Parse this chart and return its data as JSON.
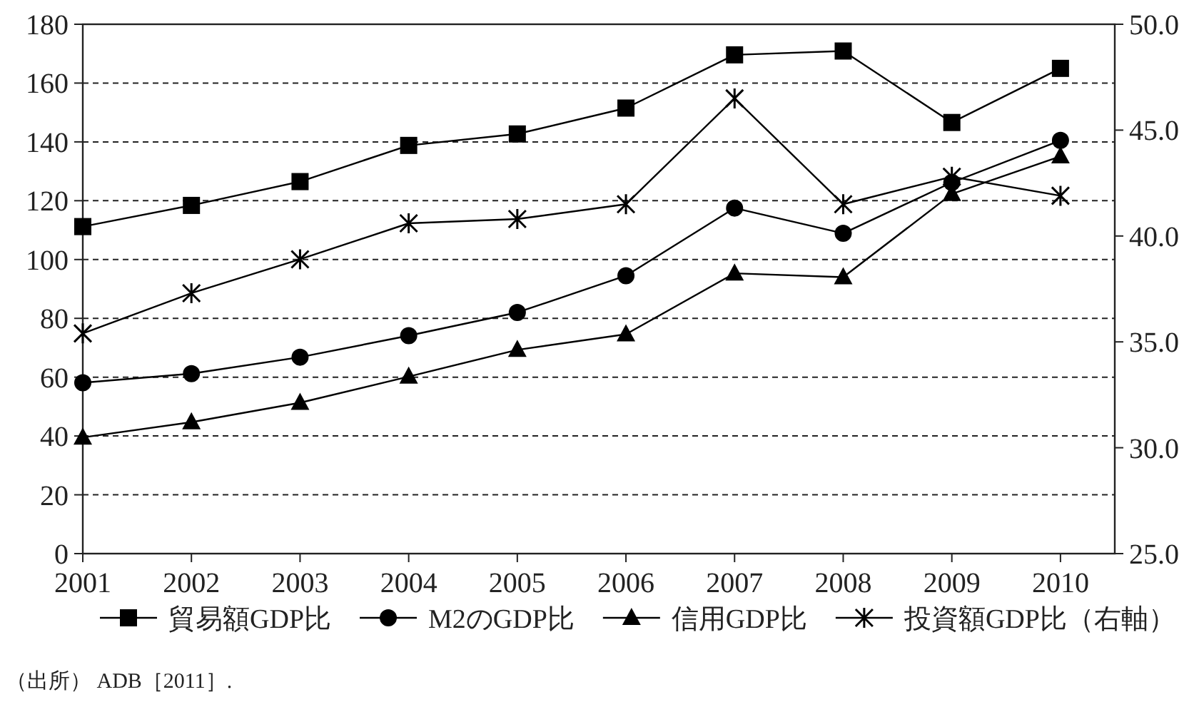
{
  "chart_data": {
    "type": "line",
    "categories": [
      "2001",
      "2002",
      "2003",
      "2004",
      "2005",
      "2006",
      "2007",
      "2008",
      "2009",
      "2010"
    ],
    "series": [
      {
        "name": "貿易額GDP比",
        "color": "#000000",
        "marker": "square",
        "values": [
          111.2,
          118.4,
          126.5,
          138.8,
          142.7,
          151.5,
          169.6,
          170.9,
          146.6,
          165.0
        ]
      },
      {
        "name": "M2のGDP比",
        "color": "#000000",
        "marker": "circle",
        "values": [
          58.1,
          61.2,
          66.8,
          74.1,
          82.0,
          94.5,
          117.5,
          108.9,
          126.2,
          140.5
        ]
      },
      {
        "name": "信用GDP比",
        "color": "#000000",
        "marker": "triangle",
        "values": [
          39.5,
          44.7,
          51.3,
          60.2,
          69.3,
          74.6,
          95.3,
          94.0,
          122.3,
          135.1
        ]
      },
      {
        "name": "投資額GDP比（右軸）",
        "color": "#000000",
        "marker": "cross",
        "axis": "y2",
        "values": [
          35.4,
          37.3,
          38.9,
          40.6,
          40.8,
          41.5,
          46.5,
          41.5,
          42.8,
          41.9
        ]
      }
    ],
    "ylim": [
      0,
      180
    ],
    "yticks": [
      0,
      20,
      40,
      60,
      80,
      100,
      120,
      140,
      160,
      180
    ],
    "y2lim": [
      25,
      50
    ],
    "y2ticks": [
      {
        "value": 25,
        "label": "25.0"
      },
      {
        "value": 30,
        "label": "30.0"
      },
      {
        "value": 35,
        "label": "35.0"
      },
      {
        "value": 40,
        "label": "40.0"
      },
      {
        "value": 45,
        "label": "45.0"
      },
      {
        "value": 50,
        "label": "50.0"
      }
    ],
    "grid": "y",
    "legend": "bottom",
    "line_style": "solid",
    "annotations": [
      "（出所） ADB［2011］."
    ]
  }
}
